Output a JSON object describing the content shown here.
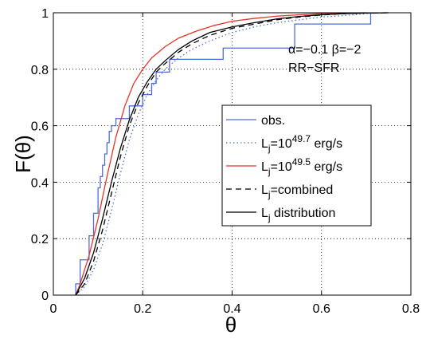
{
  "chart_data": {
    "type": "line",
    "xlabel": "θ",
    "ylabel": "F(θ)",
    "xlim": [
      0,
      0.8
    ],
    "ylim": [
      0,
      1
    ],
    "xticks": [
      0,
      0.2,
      0.4,
      0.6,
      0.8
    ],
    "xtick_labels": [
      "0",
      "0.2",
      "0.4",
      "0.6",
      "0.8"
    ],
    "yticks": [
      0,
      0.2,
      0.4,
      0.6,
      0.8,
      1
    ],
    "ytick_labels": [
      "0",
      "0.2",
      "0.4",
      "0.6",
      "0.8",
      "1"
    ],
    "grid": true,
    "annotations": [
      "α=−0.1 β=−2",
      "RR−SFR"
    ],
    "legend_position": "center-right",
    "series": [
      {
        "name": "obs.",
        "style": "step",
        "color": "#4d6ddb",
        "dash": "solid",
        "x": [
          0.05,
          0.05,
          0.06,
          0.06,
          0.08,
          0.08,
          0.09,
          0.09,
          0.1,
          0.1,
          0.105,
          0.105,
          0.11,
          0.11,
          0.115,
          0.115,
          0.12,
          0.12,
          0.125,
          0.125,
          0.13,
          0.13,
          0.14,
          0.14,
          0.17,
          0.17,
          0.2,
          0.2,
          0.22,
          0.22,
          0.23,
          0.23,
          0.26,
          0.26,
          0.38,
          0.38,
          0.54,
          0.54,
          0.71,
          0.71
        ],
        "y": [
          0,
          0.04,
          0.04,
          0.125,
          0.125,
          0.21,
          0.21,
          0.29,
          0.29,
          0.38,
          0.38,
          0.42,
          0.42,
          0.46,
          0.46,
          0.5,
          0.5,
          0.54,
          0.54,
          0.58,
          0.58,
          0.6,
          0.6,
          0.625,
          0.625,
          0.67,
          0.67,
          0.71,
          0.71,
          0.75,
          0.75,
          0.79,
          0.79,
          0.835,
          0.835,
          0.875,
          0.875,
          0.96,
          0.96,
          1.0
        ]
      },
      {
        "name": "Lj=10^49.7 erg/s",
        "label_base": "L",
        "label_sub": "j",
        "label_mid": "=10",
        "label_sup": "49.7",
        "label_tail": " erg/s",
        "style": "line",
        "color": "#4d6ddb",
        "dash": "dotted",
        "x": [
          0.05,
          0.07,
          0.09,
          0.11,
          0.13,
          0.15,
          0.17,
          0.19,
          0.21,
          0.23,
          0.25,
          0.28,
          0.31,
          0.35,
          0.4,
          0.45,
          0.5,
          0.55,
          0.6,
          0.65,
          0.7,
          0.75
        ],
        "y": [
          0,
          0.03,
          0.09,
          0.18,
          0.3,
          0.43,
          0.55,
          0.64,
          0.71,
          0.76,
          0.8,
          0.84,
          0.87,
          0.9,
          0.93,
          0.95,
          0.965,
          0.975,
          0.985,
          0.99,
          0.997,
          1.0
        ]
      },
      {
        "name": "Lj=10^49.5 erg/s",
        "label_base": "L",
        "label_sub": "j",
        "label_mid": "=10",
        "label_sup": "49.5",
        "label_tail": " erg/s",
        "style": "line",
        "color": "#e8332a",
        "dash": "solid",
        "x": [
          0.05,
          0.06,
          0.08,
          0.1,
          0.12,
          0.14,
          0.16,
          0.18,
          0.2,
          0.22,
          0.25,
          0.28,
          0.32,
          0.36,
          0.4,
          0.45,
          0.5,
          0.55,
          0.6,
          0.65,
          0.7
        ],
        "y": [
          0,
          0.04,
          0.14,
          0.27,
          0.42,
          0.56,
          0.67,
          0.75,
          0.8,
          0.84,
          0.88,
          0.91,
          0.935,
          0.955,
          0.97,
          0.98,
          0.988,
          0.993,
          0.997,
          0.999,
          1.0
        ]
      },
      {
        "name": "Lj=combined",
        "label_base": "L",
        "label_sub": "j",
        "label_mid": "=combined",
        "label_sup": "",
        "label_tail": "",
        "style": "line",
        "color": "#000000",
        "dash": "dashed",
        "x": [
          0.05,
          0.07,
          0.09,
          0.11,
          0.13,
          0.15,
          0.17,
          0.19,
          0.21,
          0.23,
          0.25,
          0.28,
          0.31,
          0.35,
          0.4,
          0.45,
          0.5,
          0.55,
          0.6,
          0.65,
          0.7,
          0.75
        ],
        "y": [
          0,
          0.04,
          0.12,
          0.23,
          0.36,
          0.49,
          0.6,
          0.68,
          0.74,
          0.79,
          0.82,
          0.86,
          0.89,
          0.92,
          0.945,
          0.96,
          0.975,
          0.985,
          0.992,
          0.997,
          0.999,
          1.0
        ]
      },
      {
        "name": "Lj distribution",
        "label_base": "L",
        "label_sub": "j",
        "label_mid": " distribution",
        "label_sup": "",
        "label_tail": "",
        "style": "line",
        "color": "#000000",
        "dash": "solid",
        "x": [
          0.05,
          0.07,
          0.09,
          0.11,
          0.13,
          0.15,
          0.17,
          0.19,
          0.21,
          0.23,
          0.25,
          0.28,
          0.31,
          0.35,
          0.4,
          0.45,
          0.5,
          0.55,
          0.6,
          0.65,
          0.7,
          0.75
        ],
        "y": [
          0,
          0.06,
          0.15,
          0.27,
          0.4,
          0.52,
          0.62,
          0.7,
          0.755,
          0.8,
          0.83,
          0.87,
          0.9,
          0.93,
          0.95,
          0.965,
          0.978,
          0.987,
          0.993,
          0.997,
          0.999,
          1.0
        ]
      }
    ]
  }
}
